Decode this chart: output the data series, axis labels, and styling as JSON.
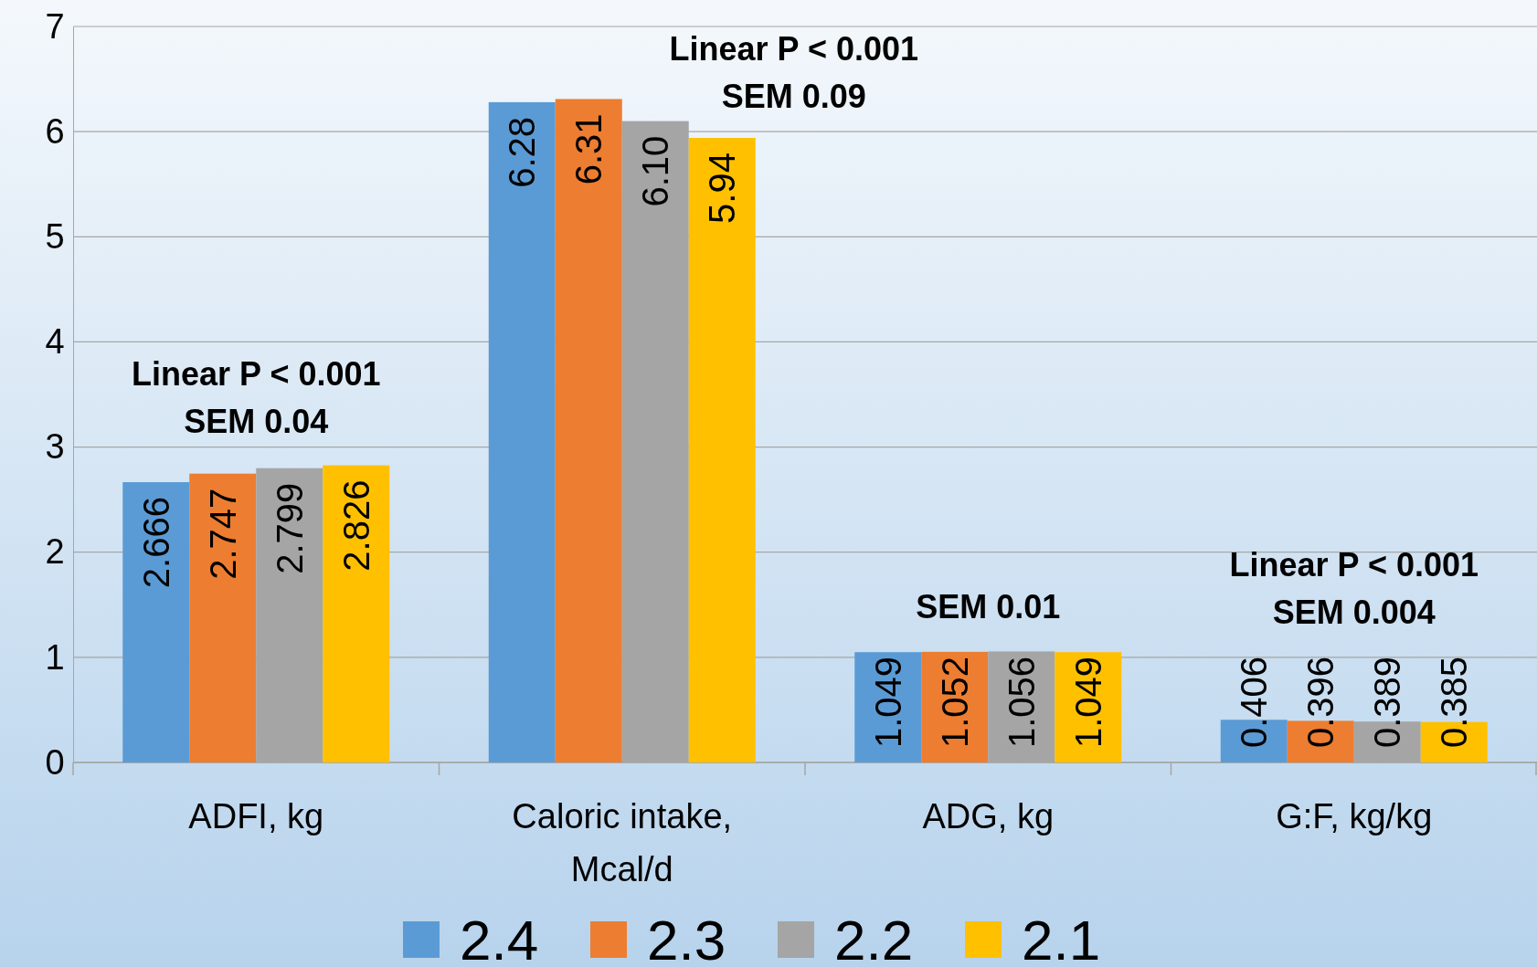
{
  "chart_data": {
    "type": "bar",
    "categories": [
      "ADFI, kg",
      "Caloric intake, Mcal/d",
      "ADG, kg",
      "G:F, kg/kg"
    ],
    "series": [
      {
        "name": "2.4",
        "color": "#5b9bd5",
        "values": [
          2.666,
          6.28,
          1.049,
          0.406
        ],
        "value_labels": [
          "2.666",
          "6.28",
          "1.049",
          "0.406"
        ]
      },
      {
        "name": "2.3",
        "color": "#ed7d31",
        "values": [
          2.747,
          6.31,
          1.052,
          0.396
        ],
        "value_labels": [
          "2.747",
          "6.31",
          "1.052",
          "0.396"
        ]
      },
      {
        "name": "2.2",
        "color": "#a5a5a5",
        "values": [
          2.799,
          6.1,
          1.056,
          0.389
        ],
        "value_labels": [
          "2.799",
          "6.10",
          "1.056",
          "0.389"
        ]
      },
      {
        "name": "2.1",
        "color": "#ffc000",
        "values": [
          2.826,
          5.94,
          1.049,
          0.385
        ],
        "value_labels": [
          "2.826",
          "5.94",
          "1.049",
          "0.385"
        ]
      }
    ],
    "ylim": [
      0,
      7
    ],
    "yticks": [
      0,
      1,
      2,
      3,
      4,
      5,
      6,
      7
    ],
    "grid": "y",
    "legend": "bottom",
    "annotations": [
      "Linear P < 0.001\nSEM 0.04",
      "Linear P < 0.001\nSEM 0.09",
      "SEM 0.01",
      "Linear P < 0.001\nSEM 0.004"
    ]
  }
}
